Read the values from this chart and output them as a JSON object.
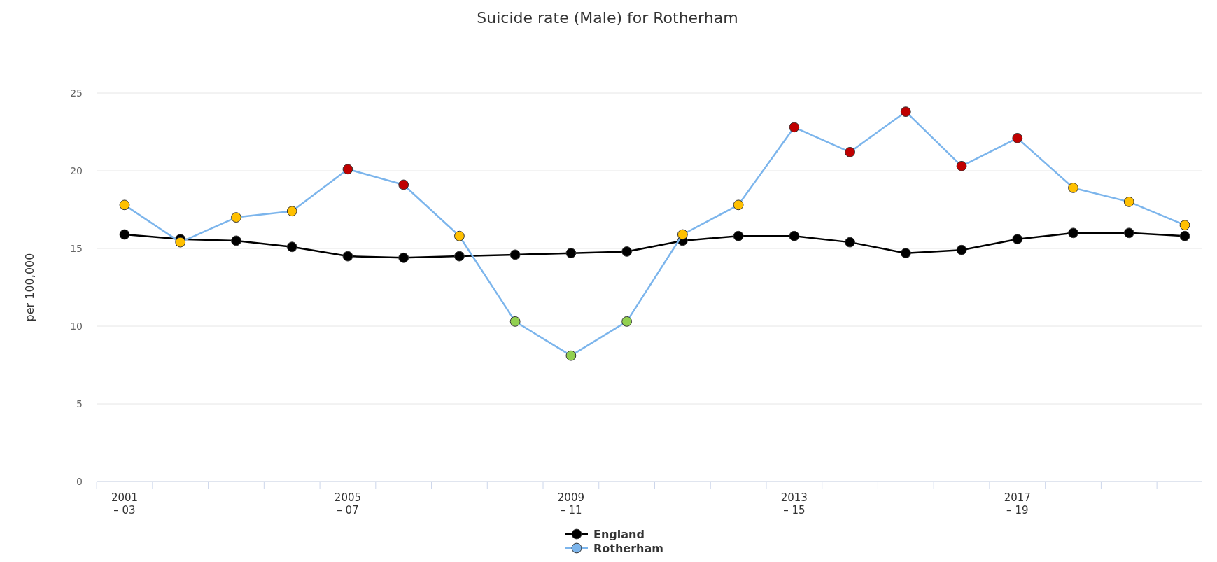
{
  "chart_data": {
    "type": "line",
    "title": "Suicide rate (Male) for Rotherham",
    "ylabel": "per 100,000",
    "categories": [
      "2001 – 03",
      null,
      null,
      null,
      "2005 – 07",
      null,
      null,
      null,
      "2009 – 11",
      null,
      null,
      null,
      "2013 – 15",
      null,
      null,
      null,
      "2017 – 19",
      null,
      null,
      null
    ],
    "series": [
      {
        "name": "England",
        "color": "#000000",
        "values": [
          15.9,
          15.6,
          15.5,
          15.1,
          14.5,
          14.4,
          14.5,
          14.6,
          14.7,
          14.8,
          15.5,
          15.8,
          15.8,
          15.4,
          14.7,
          14.9,
          15.6,
          16.0,
          16.0,
          15.8
        ]
      },
      {
        "name": "Rotherham",
        "color": "#7cb5ec",
        "colors": [
          "#ffc000",
          "#ffc000",
          "#ffc000",
          "#ffc000",
          "#c00000",
          "#c00000",
          "#ffc000",
          "#92d050",
          "#92d050",
          "#92d050",
          "#ffc000",
          "#ffc000",
          "#c00000",
          "#c00000",
          "#c00000",
          "#c00000",
          "#c00000",
          "#ffc000",
          "#ffc000",
          "#ffc000"
        ],
        "values": [
          17.8,
          15.4,
          17.0,
          17.4,
          20.1,
          19.1,
          15.8,
          10.3,
          8.1,
          10.3,
          15.9,
          17.8,
          22.8,
          21.2,
          23.8,
          20.3,
          22.1,
          18.9,
          18.0,
          16.5
        ]
      }
    ],
    "ylim": [
      0,
      25
    ],
    "yticks": [
      0,
      5,
      10,
      15,
      20,
      25
    ],
    "grid": "y",
    "legend": "bottom",
    "marker": "circle",
    "line_style": "solid"
  }
}
